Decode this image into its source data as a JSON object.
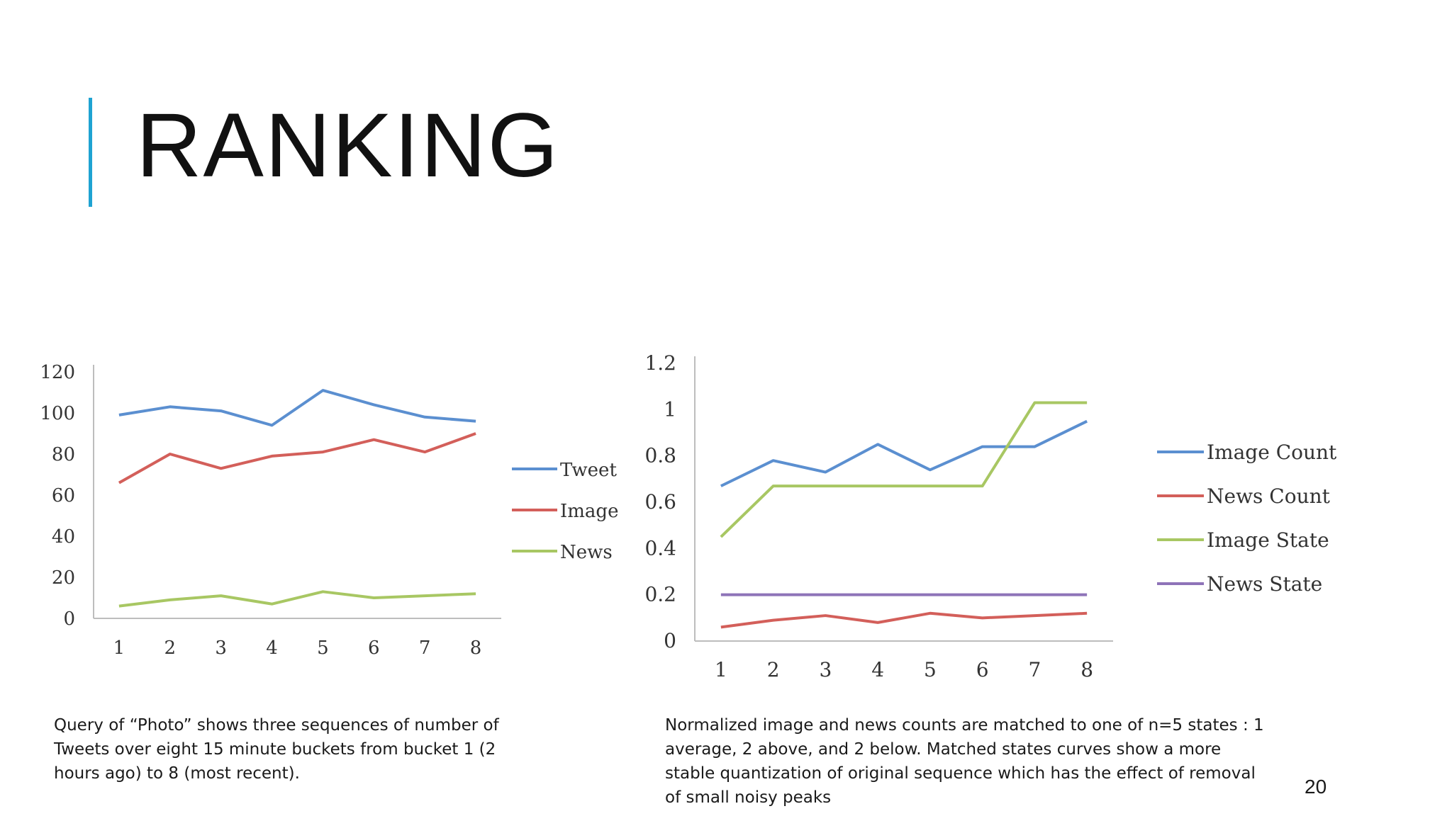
{
  "slide": {
    "title": "RANKING",
    "page_number": "20",
    "caption_left": "Query of “Photo” shows three sequences of number of Tweets over eight 15 minute buckets from bucket 1 (2 hours ago) to 8 (most recent).",
    "caption_right": "Normalized image and news counts are matched to one of n=5 states : 1 average, 2 above, and 2 below. Matched states curves show a more stable quantization of original sequence which has the effect of removal of small noisy peaks",
    "accent_color": "#1fa3d2"
  },
  "chart_data": [
    {
      "type": "line",
      "title": "",
      "xlabel": "",
      "ylabel": "",
      "x": [
        1,
        2,
        3,
        4,
        5,
        6,
        7,
        8
      ],
      "ylim": [
        0,
        120
      ],
      "yticks": [
        0,
        20,
        40,
        60,
        80,
        100,
        120
      ],
      "grid": false,
      "legend_position": "right",
      "series": [
        {
          "name": "Tweet",
          "color": "#5b8fd0",
          "values": [
            99,
            103,
            101,
            94,
            111,
            104,
            98,
            96
          ]
        },
        {
          "name": "Image",
          "color": "#d35f5a",
          "values": [
            66,
            80,
            73,
            79,
            81,
            87,
            81,
            90
          ]
        },
        {
          "name": "News",
          "color": "#a8c763",
          "values": [
            6,
            9,
            11,
            7,
            13,
            10,
            11,
            12
          ]
        }
      ]
    },
    {
      "type": "line",
      "title": "",
      "xlabel": "",
      "ylabel": "",
      "x": [
        1,
        2,
        3,
        4,
        5,
        6,
        7,
        8
      ],
      "ylim": [
        0,
        1.2
      ],
      "yticks": [
        0,
        0.2,
        0.4,
        0.6,
        0.8,
        1,
        1.2
      ],
      "grid": false,
      "legend_position": "right",
      "series": [
        {
          "name": "Image Count",
          "color": "#5b8fd0",
          "values": [
            0.67,
            0.78,
            0.73,
            0.85,
            0.74,
            0.84,
            0.84,
            0.95
          ]
        },
        {
          "name": "News Count",
          "color": "#d35f5a",
          "values": [
            0.06,
            0.09,
            0.11,
            0.08,
            0.12,
            0.1,
            0.11,
            0.12
          ]
        },
        {
          "name": "Image State",
          "color": "#a8c763",
          "values": [
            0.45,
            0.67,
            0.67,
            0.67,
            0.67,
            0.67,
            1.03,
            1.03
          ]
        },
        {
          "name": "News State",
          "color": "#8e73b8",
          "values": [
            0.2,
            0.2,
            0.2,
            0.2,
            0.2,
            0.2,
            0.2,
            0.2
          ]
        }
      ]
    }
  ]
}
